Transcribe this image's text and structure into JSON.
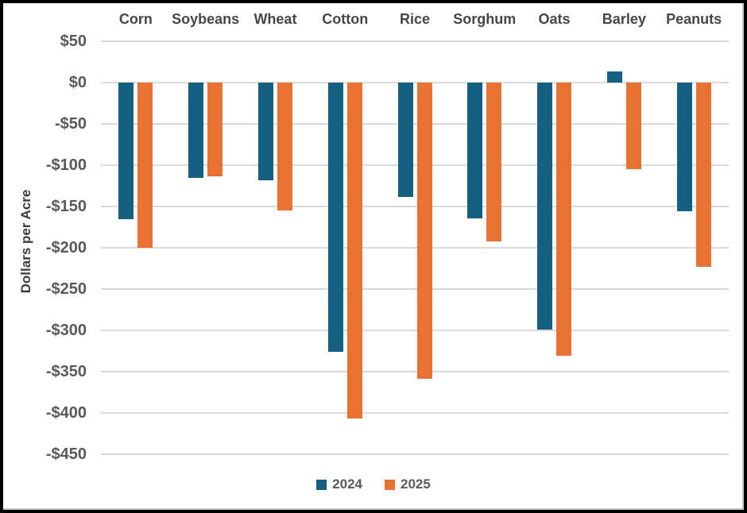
{
  "chart_data": {
    "type": "bar",
    "title": "",
    "xlabel": "",
    "ylabel": "Dollars per Acre",
    "categories": [
      "Corn",
      "Soybeans",
      "Wheat",
      "Cotton",
      "Rice",
      "Sorghum",
      "Oats",
      "Barley",
      "Peanuts"
    ],
    "series": [
      {
        "name": "2024",
        "color": "#156082",
        "values": [
          -165,
          -115,
          -118,
          -326,
          -138,
          -164,
          -299,
          13,
          -156
        ]
      },
      {
        "name": "2025",
        "color": "#E97132",
        "values": [
          -200,
          -113,
          -155,
          -407,
          -359,
          -192,
          -331,
          -105,
          -223
        ]
      }
    ],
    "ylim": [
      -450,
      50
    ],
    "ytick_step": 50,
    "ytick_labels": [
      "$50",
      "$0",
      "-$50",
      "-$100",
      "-$150",
      "-$200",
      "-$250",
      "-$300",
      "-$350",
      "-$400",
      "-$450"
    ],
    "grid": true,
    "legend_position": "bottom"
  },
  "colors": {
    "background": "#FFFFFF",
    "frame_border": "#000000",
    "gridline": "#D9D9D9",
    "tick_text": "#595959",
    "category_text": "#464646",
    "axis_title_text": "#3D3D3D",
    "legend_text": "#595959"
  }
}
